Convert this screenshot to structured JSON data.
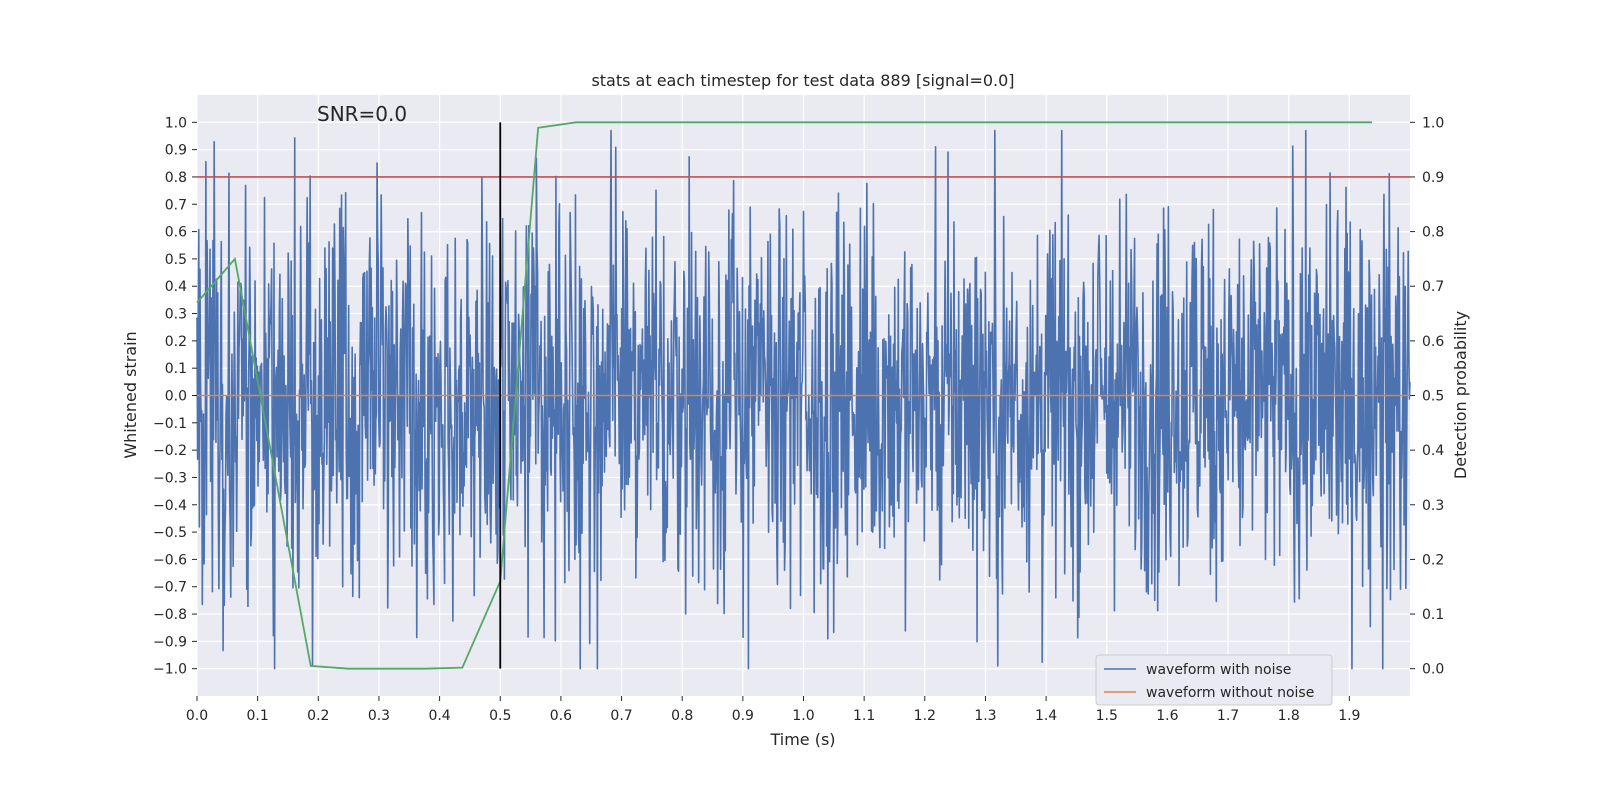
{
  "chart_data": {
    "type": "line",
    "title": "stats at each timestep for test data 889 [signal=0.0]",
    "xlabel": "Time (s)",
    "ylabel": "Whitened strain",
    "y2label": "Detection probability",
    "xlim": [
      0.0,
      2.0
    ],
    "ylim": [
      -1.1,
      1.1
    ],
    "y2lim": [
      -0.05,
      1.05
    ],
    "xticks": [
      "0.0",
      "0.1",
      "0.2",
      "0.3",
      "0.4",
      "0.5",
      "0.6",
      "0.7",
      "0.8",
      "0.9",
      "1.0",
      "1.1",
      "1.2",
      "1.3",
      "1.4",
      "1.5",
      "1.6",
      "1.7",
      "1.8",
      "1.9"
    ],
    "yticks": [
      "1.0",
      "0.9",
      "0.8",
      "0.7",
      "0.6",
      "0.5",
      "0.4",
      "0.3",
      "0.2",
      "0.1",
      "0.0",
      "-0.1",
      "-0.2",
      "-0.3",
      "-0.4",
      "-0.5",
      "-0.6",
      "-0.7",
      "-0.8",
      "-0.9",
      "-1.0"
    ],
    "y2ticks": [
      "1.0",
      "0.9",
      "0.8",
      "0.7",
      "0.6",
      "0.5",
      "0.4",
      "0.3",
      "0.2",
      "0.1",
      "0.0"
    ],
    "grid": true,
    "legend_position": "lower-right",
    "annotation": "SNR=0.0",
    "series": [
      {
        "name": "waveform with noise",
        "color": "#4c72b0",
        "axis": "left",
        "kind": "noise",
        "t_range": [
          0.0,
          2.0
        ],
        "amplitude_range": [
          -1.0,
          0.97
        ]
      },
      {
        "name": "waveform without noise",
        "color": "#dd8452",
        "axis": "left",
        "x": [
          0.0,
          2.0
        ],
        "y": [
          0.0,
          0.0
        ]
      },
      {
        "color": "#55a868",
        "axis": "right",
        "x": [
          0.0,
          0.0625,
          0.1875,
          0.25,
          0.375,
          0.4375,
          0.5,
          0.5625,
          0.625,
          0.6875,
          0.75,
          0.8125,
          0.875,
          0.9375,
          1.0,
          1.0625,
          1.125,
          1.1875,
          1.25,
          1.3125,
          1.375,
          1.4375,
          1.5,
          1.5625,
          1.625,
          1.6875,
          1.75,
          1.8125,
          1.875,
          1.9375
        ],
        "y": [
          0.67,
          0.75,
          0.005,
          0.0,
          0.0,
          0.002,
          0.16,
          0.99,
          1.0,
          1.0,
          1.0,
          1.0,
          1.0,
          1.0,
          1.0,
          1.0,
          1.0,
          1.0,
          1.0,
          1.0,
          1.0,
          1.0,
          1.0,
          1.0,
          1.0,
          1.0,
          1.0,
          1.0,
          1.0,
          1.0
        ]
      }
    ],
    "threshold_line": {
      "axis": "right",
      "value": 0.9,
      "color": "#c44e52"
    },
    "vertical_line": {
      "x": 0.5,
      "y2_range": [
        0.0,
        1.0
      ],
      "color": "#000000"
    }
  }
}
